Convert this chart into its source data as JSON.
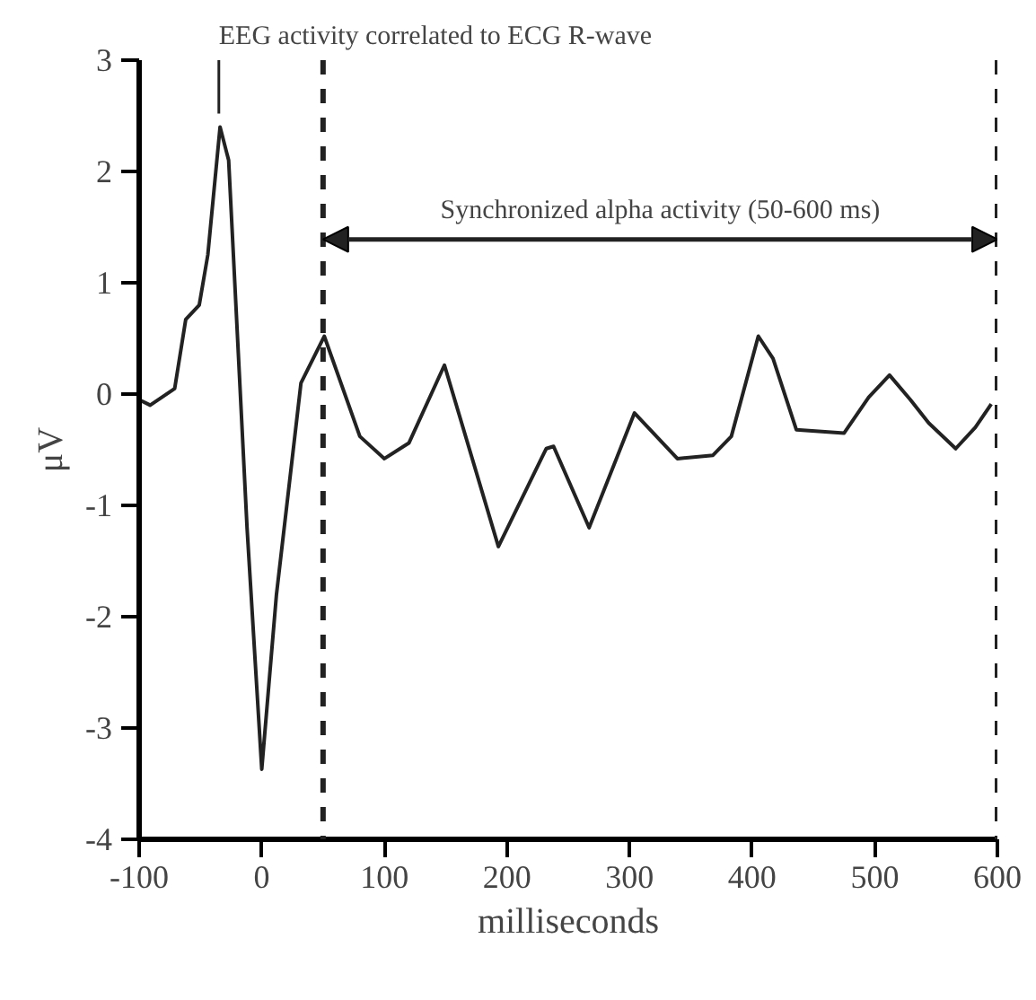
{
  "chart_data": {
    "type": "line",
    "xlabel": "milliseconds",
    "ylabel": "μV",
    "x": [
      -100,
      -91,
      -71,
      -62,
      -51,
      -44,
      -34,
      -27,
      -12,
      0,
      12,
      32,
      51,
      80,
      100,
      120,
      149,
      193,
      232,
      238,
      267,
      304,
      339,
      368,
      383,
      405,
      417,
      436,
      475,
      495,
      512,
      529,
      544,
      566,
      582,
      595
    ],
    "values": [
      -0.05,
      -0.1,
      0.05,
      0.67,
      0.8,
      1.25,
      2.4,
      2.1,
      -1.2,
      -3.37,
      -1.8,
      0.1,
      0.52,
      -0.38,
      -0.58,
      -0.44,
      0.26,
      -1.37,
      -0.49,
      -0.47,
      -1.2,
      -0.17,
      -0.58,
      -0.55,
      -0.38,
      0.52,
      0.32,
      -0.32,
      -0.35,
      -0.03,
      0.17,
      -0.05,
      -0.26,
      -0.49,
      -0.3,
      -0.09
    ],
    "color": "#222222",
    "line_style": "solid",
    "marker": "none",
    "grid": false,
    "legend": false,
    "xlim": [
      -100,
      600
    ],
    "ylim": [
      -4,
      3
    ],
    "xticks": [
      -100,
      0,
      100,
      200,
      300,
      400,
      500,
      600
    ],
    "yticks": [
      -4,
      -3,
      -2,
      -1,
      0,
      1,
      2,
      3
    ],
    "ref_lines": [
      {
        "axis": "x",
        "value": 50,
        "label": null,
        "line_style": "dashed",
        "color": "#222222"
      },
      {
        "axis": "x",
        "value": 600,
        "label": null,
        "line_style": "dashed",
        "color": "#222222"
      }
    ],
    "annotations": [
      {
        "text": "EEG activity correlated to ECG R-wave",
        "x": -35,
        "y": 2.4
      },
      "Synchronized alpha activity (50-600 ms)"
    ]
  }
}
